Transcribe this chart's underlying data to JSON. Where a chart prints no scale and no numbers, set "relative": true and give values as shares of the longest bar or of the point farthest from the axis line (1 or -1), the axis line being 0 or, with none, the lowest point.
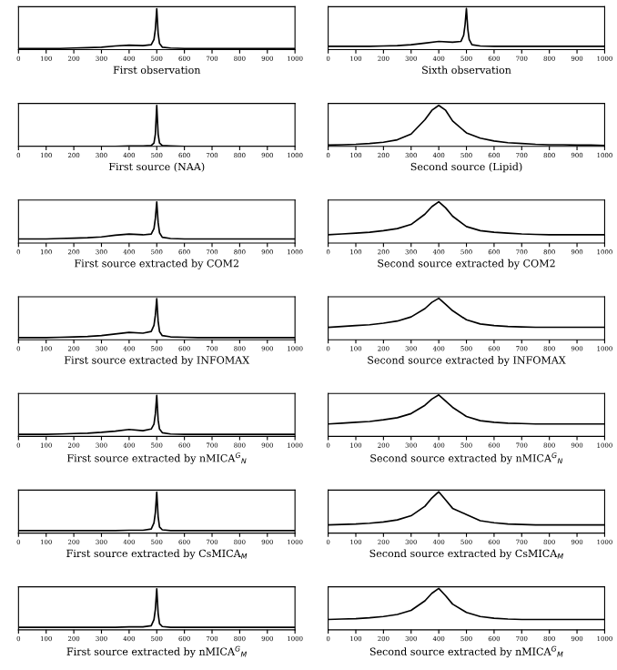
{
  "chart_data": [
    {
      "type": "line",
      "relative": true,
      "xlabel": "First observation",
      "x": [
        0,
        50,
        100,
        150,
        200,
        250,
        300,
        350,
        400,
        450,
        480,
        490,
        495,
        500,
        505,
        510,
        520,
        550,
        600,
        650,
        700,
        750,
        800,
        850,
        900,
        950,
        1000
      ],
      "values": [
        0.03,
        0.03,
        0.03,
        0.03,
        0.04,
        0.05,
        0.06,
        0.09,
        0.11,
        0.1,
        0.12,
        0.25,
        0.5,
        1,
        0.4,
        0.15,
        0.06,
        0.04,
        0.03,
        0.03,
        0.03,
        0.03,
        0.03,
        0.03,
        0.03,
        0.03,
        0.03
      ],
      "color": "#000000",
      "xlim": [
        0,
        1000
      ],
      "xticks": [
        0,
        100,
        200,
        300,
        400,
        500,
        600,
        700,
        800,
        900,
        1000
      ]
    },
    {
      "type": "line",
      "relative": true,
      "xlabel": "Sixth observation",
      "x": [
        0,
        50,
        100,
        150,
        200,
        250,
        300,
        350,
        400,
        450,
        480,
        490,
        495,
        500,
        505,
        510,
        520,
        550,
        600,
        650,
        700,
        750,
        800,
        850,
        900,
        950,
        1000
      ],
      "values": [
        0.08,
        0.08,
        0.08,
        0.08,
        0.09,
        0.1,
        0.12,
        0.16,
        0.2,
        0.18,
        0.2,
        0.35,
        0.6,
        1,
        0.5,
        0.25,
        0.12,
        0.09,
        0.08,
        0.08,
        0.08,
        0.08,
        0.08,
        0.08,
        0.08,
        0.08,
        0.08
      ],
      "color": "#000000",
      "xlim": [
        0,
        1000
      ],
      "xticks": [
        0,
        100,
        200,
        300,
        400,
        500,
        600,
        700,
        800,
        900,
        1000
      ]
    },
    {
      "type": "line",
      "relative": true,
      "xlabel": "First source (NAA)",
      "x": [
        0,
        50,
        100,
        150,
        200,
        250,
        300,
        350,
        400,
        450,
        480,
        490,
        495,
        500,
        505,
        510,
        520,
        550,
        600,
        650,
        700,
        750,
        800,
        850,
        900,
        950,
        1000
      ],
      "values": [
        0,
        0,
        0,
        0,
        0,
        0,
        0,
        0,
        0.01,
        0.01,
        0.02,
        0.08,
        0.3,
        1,
        0.3,
        0.08,
        0.02,
        0.01,
        0,
        0,
        0,
        0,
        0,
        0,
        0,
        0,
        0
      ],
      "color": "#000000",
      "xlim": [
        0,
        1000
      ],
      "xticks": [
        0,
        100,
        200,
        300,
        400,
        500,
        600,
        700,
        800,
        900,
        1000
      ]
    },
    {
      "type": "line",
      "relative": true,
      "xlabel": "Second source (Lipid)",
      "x": [
        0,
        50,
        100,
        150,
        200,
        250,
        300,
        350,
        375,
        400,
        425,
        450,
        500,
        550,
        600,
        650,
        700,
        750,
        800,
        850,
        900,
        950,
        1000
      ],
      "values": [
        0.03,
        0.04,
        0.05,
        0.07,
        0.1,
        0.16,
        0.3,
        0.65,
        0.88,
        1,
        0.88,
        0.62,
        0.33,
        0.2,
        0.13,
        0.09,
        0.07,
        0.05,
        0.04,
        0.04,
        0.03,
        0.03,
        0.02
      ],
      "color": "#000000",
      "xlim": [
        0,
        1000
      ],
      "xticks": [
        0,
        100,
        200,
        300,
        400,
        500,
        600,
        700,
        800,
        900,
        1000
      ]
    },
    {
      "type": "line",
      "relative": true,
      "xlabel": "First source extracted by COM2",
      "x": [
        0,
        50,
        100,
        150,
        200,
        250,
        300,
        350,
        400,
        450,
        480,
        490,
        495,
        500,
        505,
        510,
        520,
        550,
        600,
        650,
        700,
        750,
        800,
        850,
        900,
        950,
        1000
      ],
      "values": [
        0.1,
        0.1,
        0.1,
        0.11,
        0.12,
        0.13,
        0.15,
        0.19,
        0.22,
        0.2,
        0.22,
        0.35,
        0.6,
        1,
        0.5,
        0.25,
        0.14,
        0.11,
        0.1,
        0.1,
        0.1,
        0.1,
        0.1,
        0.1,
        0.1,
        0.1,
        0.1
      ],
      "color": "#000000",
      "xlim": [
        0,
        1000
      ],
      "xticks": [
        0,
        100,
        200,
        300,
        400,
        500,
        600,
        700,
        800,
        900,
        1000
      ]
    },
    {
      "type": "line",
      "relative": true,
      "xlabel": "Second source extracted by COM2",
      "x": [
        0,
        50,
        100,
        150,
        200,
        250,
        300,
        350,
        375,
        400,
        425,
        450,
        500,
        550,
        600,
        650,
        700,
        750,
        800,
        850,
        900,
        950,
        1000
      ],
      "values": [
        0.2,
        0.22,
        0.24,
        0.26,
        0.3,
        0.35,
        0.45,
        0.7,
        0.88,
        1,
        0.85,
        0.65,
        0.4,
        0.3,
        0.26,
        0.24,
        0.22,
        0.21,
        0.2,
        0.2,
        0.2,
        0.2,
        0.2
      ],
      "color": "#000000",
      "xlim": [
        0,
        1000
      ],
      "xticks": [
        0,
        100,
        200,
        300,
        400,
        500,
        600,
        700,
        800,
        900,
        1000
      ]
    },
    {
      "type": "line",
      "relative": true,
      "xlabel": "First source extracted by INFOMAX",
      "x": [
        0,
        50,
        100,
        150,
        200,
        250,
        300,
        350,
        400,
        450,
        480,
        490,
        495,
        500,
        505,
        510,
        520,
        550,
        600,
        650,
        700,
        750,
        800,
        850,
        900,
        950,
        1000
      ],
      "values": [
        0.05,
        0.05,
        0.05,
        0.06,
        0.07,
        0.08,
        0.1,
        0.14,
        0.18,
        0.16,
        0.2,
        0.35,
        0.6,
        1,
        0.45,
        0.2,
        0.1,
        0.07,
        0.06,
        0.05,
        0.05,
        0.05,
        0.05,
        0.05,
        0.05,
        0.05,
        0.05
      ],
      "color": "#000000",
      "xlim": [
        0,
        1000
      ],
      "xticks": [
        0,
        100,
        200,
        300,
        400,
        500,
        600,
        700,
        800,
        900,
        1000
      ]
    },
    {
      "type": "line",
      "relative": true,
      "xlabel": "Second source extracted by INFOMAX",
      "x": [
        0,
        50,
        100,
        150,
        200,
        250,
        300,
        350,
        375,
        400,
        425,
        450,
        500,
        550,
        600,
        650,
        700,
        750,
        800,
        850,
        900,
        950,
        1000
      ],
      "values": [
        0.3,
        0.32,
        0.34,
        0.36,
        0.4,
        0.45,
        0.55,
        0.75,
        0.9,
        1,
        0.85,
        0.7,
        0.48,
        0.38,
        0.34,
        0.32,
        0.31,
        0.3,
        0.3,
        0.3,
        0.3,
        0.3,
        0.3
      ],
      "color": "#000000",
      "xlim": [
        0,
        1000
      ],
      "xticks": [
        0,
        100,
        200,
        300,
        400,
        500,
        600,
        700,
        800,
        900,
        1000
      ]
    },
    {
      "type": "line",
      "relative": true,
      "xlabel": "First source extracted by nMICA$^{G}$$_{N}$",
      "x": [
        0,
        50,
        100,
        150,
        200,
        250,
        300,
        350,
        400,
        450,
        480,
        490,
        495,
        500,
        505,
        510,
        520,
        550,
        600,
        650,
        700,
        750,
        800,
        850,
        900,
        950,
        1000
      ],
      "values": [
        0.05,
        0.05,
        0.05,
        0.06,
        0.07,
        0.08,
        0.1,
        0.13,
        0.17,
        0.14,
        0.18,
        0.3,
        0.55,
        1,
        0.4,
        0.18,
        0.09,
        0.06,
        0.05,
        0.05,
        0.05,
        0.05,
        0.05,
        0.05,
        0.05,
        0.05,
        0.05
      ],
      "color": "#000000",
      "xlim": [
        0,
        1000
      ],
      "xticks": [
        0,
        100,
        200,
        300,
        400,
        500,
        600,
        700,
        800,
        900,
        1000
      ]
    },
    {
      "type": "line",
      "relative": true,
      "xlabel": "Second source extracted by nMICA$^{G}$$_{N}$",
      "x": [
        0,
        50,
        100,
        150,
        200,
        250,
        300,
        350,
        375,
        400,
        425,
        450,
        500,
        550,
        600,
        650,
        700,
        750,
        800,
        850,
        900,
        950,
        1000
      ],
      "values": [
        0.3,
        0.32,
        0.34,
        0.36,
        0.4,
        0.45,
        0.55,
        0.75,
        0.9,
        1,
        0.85,
        0.7,
        0.48,
        0.38,
        0.34,
        0.32,
        0.31,
        0.3,
        0.3,
        0.3,
        0.3,
        0.3,
        0.3
      ],
      "color": "#000000",
      "xlim": [
        0,
        1000
      ],
      "xticks": [
        0,
        100,
        200,
        300,
        400,
        500,
        600,
        700,
        800,
        900,
        1000
      ]
    },
    {
      "type": "line",
      "relative": true,
      "xlabel": "First source extracted by CsMICA$_{M}$",
      "x": [
        0,
        50,
        100,
        150,
        200,
        250,
        300,
        350,
        400,
        450,
        480,
        490,
        495,
        500,
        505,
        510,
        520,
        550,
        600,
        650,
        700,
        750,
        800,
        850,
        900,
        950,
        1000
      ],
      "values": [
        0.06,
        0.06,
        0.06,
        0.06,
        0.06,
        0.06,
        0.06,
        0.06,
        0.07,
        0.07,
        0.1,
        0.25,
        0.5,
        1,
        0.4,
        0.15,
        0.08,
        0.06,
        0.06,
        0.06,
        0.06,
        0.06,
        0.06,
        0.06,
        0.06,
        0.06,
        0.06
      ],
      "color": "#000000",
      "xlim": [
        0,
        1000
      ],
      "xticks": [
        0,
        100,
        200,
        300,
        400,
        500,
        600,
        700,
        800,
        900,
        1000
      ]
    },
    {
      "type": "line",
      "relative": true,
      "xlabel": "Second source extracted by CsMICA$_{M}$",
      "x": [
        0,
        50,
        100,
        150,
        200,
        250,
        300,
        350,
        375,
        400,
        425,
        450,
        500,
        550,
        600,
        650,
        700,
        750,
        800,
        850,
        900,
        950,
        1000
      ],
      "values": [
        0.2,
        0.21,
        0.22,
        0.24,
        0.27,
        0.32,
        0.42,
        0.65,
        0.85,
        1,
        0.8,
        0.6,
        0.45,
        0.3,
        0.25,
        0.22,
        0.21,
        0.2,
        0.2,
        0.2,
        0.2,
        0.2,
        0.2
      ],
      "color": "#000000",
      "xlim": [
        0,
        1000
      ],
      "xticks": [
        0,
        100,
        200,
        300,
        400,
        500,
        600,
        700,
        800,
        900,
        1000
      ]
    },
    {
      "type": "line",
      "relative": true,
      "xlabel": "First source extracted by nMICA$^{G}$$_{M}$",
      "x": [
        0,
        50,
        100,
        150,
        200,
        250,
        300,
        350,
        400,
        450,
        480,
        490,
        495,
        500,
        505,
        510,
        520,
        550,
        600,
        650,
        700,
        750,
        800,
        850,
        900,
        950,
        1000
      ],
      "values": [
        0.06,
        0.06,
        0.06,
        0.06,
        0.06,
        0.06,
        0.06,
        0.06,
        0.07,
        0.07,
        0.1,
        0.25,
        0.5,
        1,
        0.4,
        0.15,
        0.08,
        0.06,
        0.06,
        0.06,
        0.06,
        0.06,
        0.06,
        0.06,
        0.06,
        0.06,
        0.06
      ],
      "color": "#000000",
      "xlim": [
        0,
        1000
      ],
      "xticks": [
        0,
        100,
        200,
        300,
        400,
        500,
        600,
        700,
        800,
        900,
        1000
      ]
    },
    {
      "type": "line",
      "relative": true,
      "xlabel": "Second source extracted by nMICA$^{G}$$_{M}$",
      "x": [
        0,
        50,
        100,
        150,
        200,
        250,
        300,
        350,
        375,
        400,
        425,
        450,
        500,
        550,
        600,
        650,
        700,
        750,
        800,
        850,
        900,
        950,
        1000
      ],
      "values": [
        0.25,
        0.26,
        0.27,
        0.29,
        0.32,
        0.37,
        0.47,
        0.7,
        0.88,
        1,
        0.82,
        0.62,
        0.42,
        0.32,
        0.28,
        0.26,
        0.25,
        0.25,
        0.25,
        0.25,
        0.25,
        0.25,
        0.25
      ],
      "color": "#000000",
      "xlim": [
        0,
        1000
      ],
      "xticks": [
        0,
        100,
        200,
        300,
        400,
        500,
        600,
        700,
        800,
        900,
        1000
      ]
    }
  ]
}
